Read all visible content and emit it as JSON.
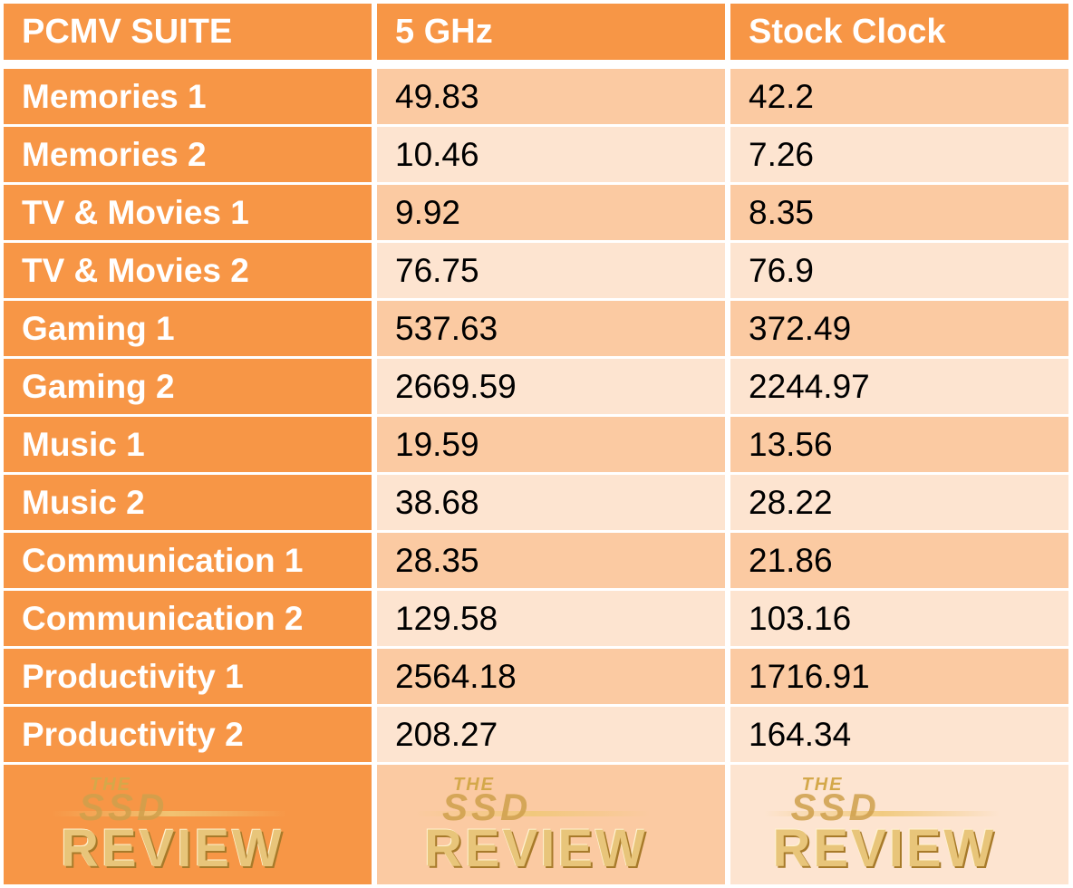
{
  "header": {
    "col1": "PCMV SUITE",
    "col2": "5 GHz",
    "col3": "Stock Clock"
  },
  "rows": [
    {
      "label": "Memories 1",
      "ghz5": "49.83",
      "stock": "42.2"
    },
    {
      "label": "Memories 2",
      "ghz5": "10.46",
      "stock": "7.26"
    },
    {
      "label": "TV & Movies 1",
      "ghz5": "9.92",
      "stock": "8.35"
    },
    {
      "label": "TV & Movies 2",
      "ghz5": "76.75",
      "stock": "76.9"
    },
    {
      "label": "Gaming 1",
      "ghz5": "537.63",
      "stock": "372.49"
    },
    {
      "label": "Gaming 2",
      "ghz5": "2669.59",
      "stock": "2244.97"
    },
    {
      "label": "Music 1",
      "ghz5": "19.59",
      "stock": "13.56"
    },
    {
      "label": "Music 2",
      "ghz5": "38.68",
      "stock": "28.22"
    },
    {
      "label": "Communication 1",
      "ghz5": "28.35",
      "stock": "21.86"
    },
    {
      "label": "Communication 2",
      "ghz5": "129.58",
      "stock": "103.16"
    },
    {
      "label": "Productivity 1",
      "ghz5": "2564.18",
      "stock": "1716.91"
    },
    {
      "label": "Productivity 2",
      "ghz5": "208.27",
      "stock": "164.34"
    }
  ],
  "logo": {
    "line1": "THE",
    "line2": "SSD",
    "line3": "REVIEW"
  },
  "colors": {
    "accent": "#f79646",
    "row_dark": "#fbcaa2",
    "row_light": "#fde4d0"
  }
}
